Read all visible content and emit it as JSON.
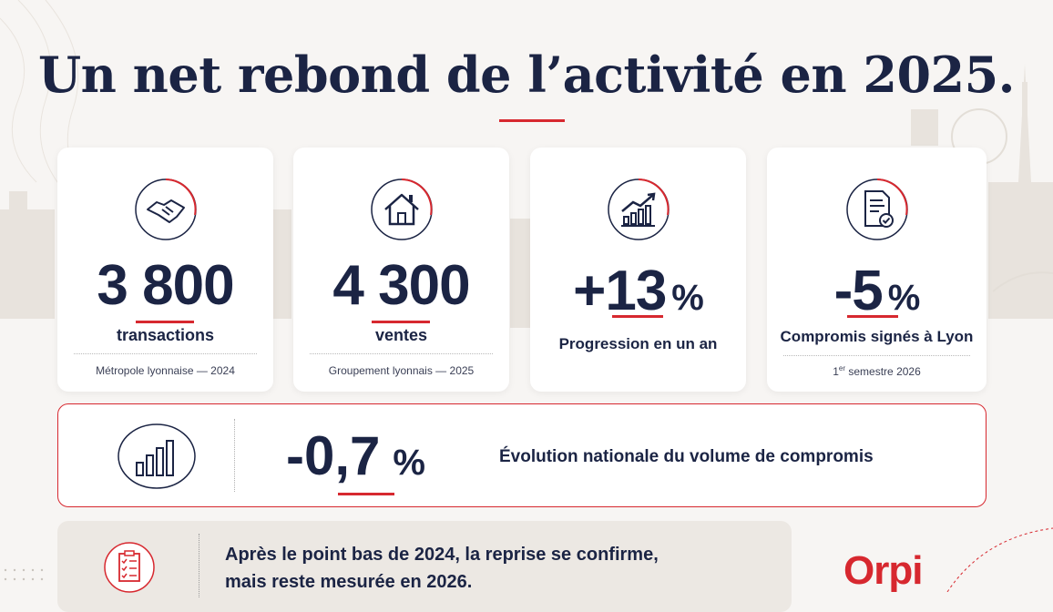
{
  "title": "Un net rebond de l’activité en 2025.",
  "cards": [
    {
      "value": "3 800",
      "unit": "",
      "label": "transactions",
      "sub": "Métropole lyonnaise — 2024",
      "icon": "handshake-icon"
    },
    {
      "value": "4 300",
      "unit": "",
      "label": "ventes",
      "sub": "Groupement lyonnais — 2025",
      "icon": "house-icon"
    },
    {
      "value": "+13",
      "unit": "%",
      "label": "Progression en un an",
      "sub": "",
      "icon": "growth-chart-icon"
    },
    {
      "value": "-5",
      "unit": "%",
      "label": "Compromis signés à Lyon",
      "sub_sup": "er",
      "sub_pre": "1",
      "sub_post": " semestre 2026",
      "icon": "document-check-icon"
    }
  ],
  "national": {
    "value": "-0,7",
    "unit": "%",
    "label": "Évolution nationale du volume de compromis",
    "icon": "bar-chart-icon"
  },
  "note": {
    "line1": "Après le point bas de 2024, la reprise se confirme,",
    "line2": "mais reste mesurée en 2026.",
    "icon": "checklist-icon"
  },
  "brand": "Orpi",
  "colors": {
    "accent": "#d7282f",
    "navy": "#1b2444",
    "background": "#f7f5f3"
  }
}
